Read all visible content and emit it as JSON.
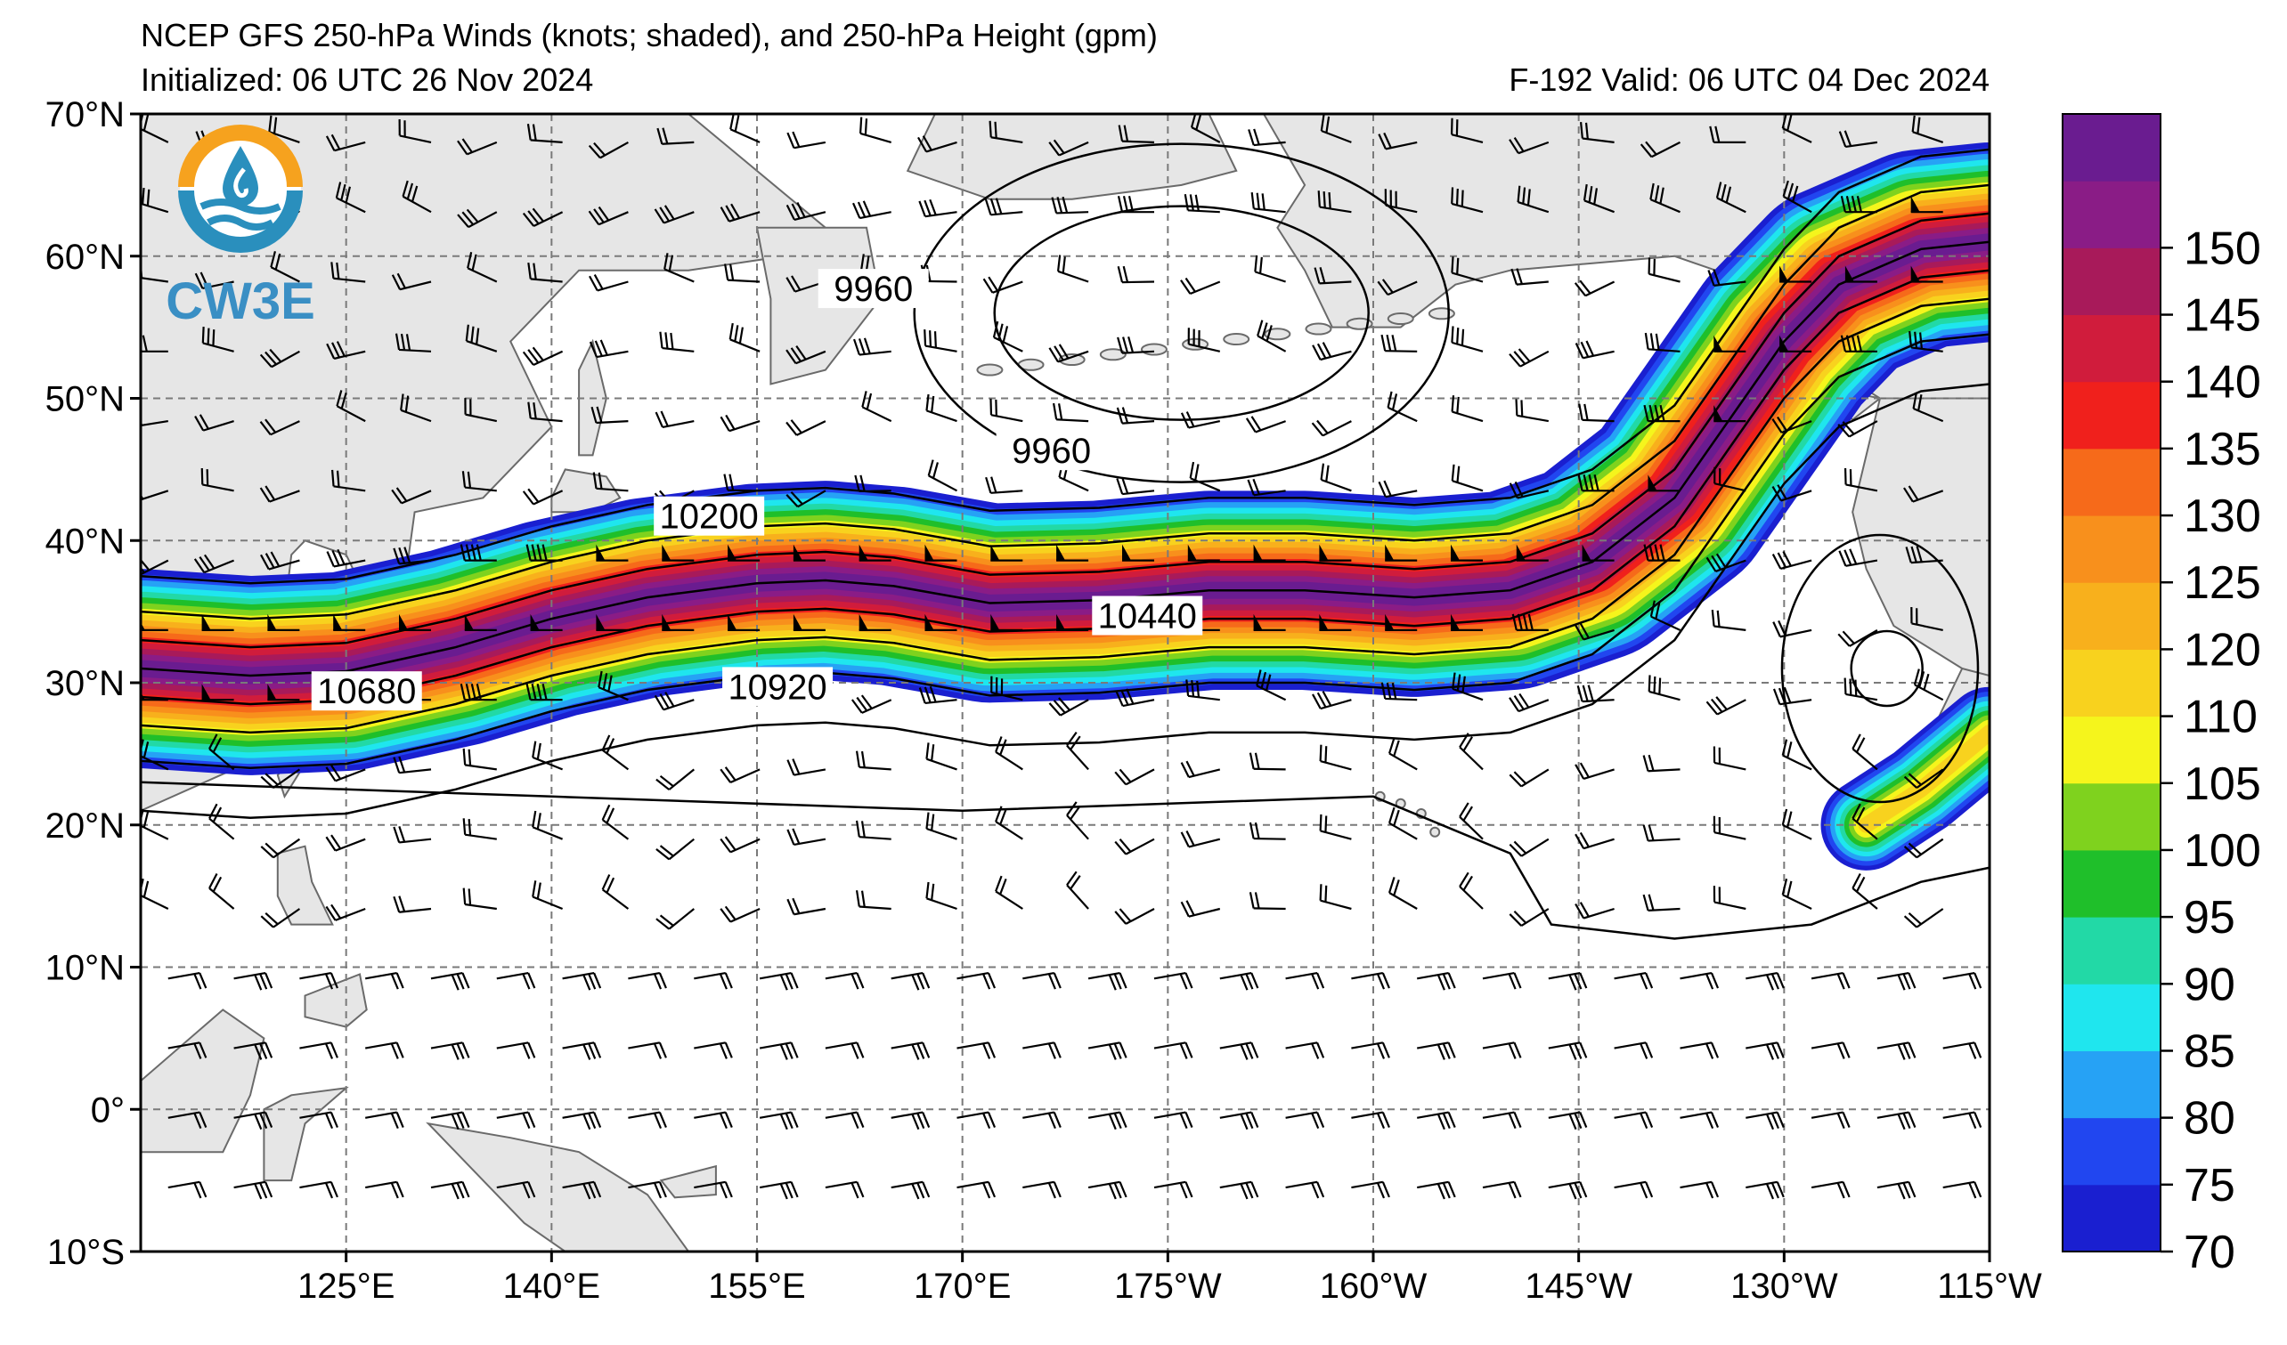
{
  "header": {
    "title": "NCEP GFS 250-hPa Winds (knots; shaded), and 250-hPa Height (gpm)",
    "initialized": "Initialized: 06 UTC 26 Nov 2024",
    "valid": "F-192  Valid: 06 UTC 04 Dec 2024"
  },
  "logo": {
    "text": "CW3E",
    "colors": {
      "ring": "#f6a21e",
      "water": "#2a8fbd",
      "text": "#3a8fc4"
    }
  },
  "map": {
    "lat_range": [
      -10,
      70
    ],
    "lon_range": [
      110,
      245
    ],
    "lat_ticks": [
      {
        "lat": 70,
        "label": "70°N"
      },
      {
        "lat": 60,
        "label": "60°N"
      },
      {
        "lat": 50,
        "label": "50°N"
      },
      {
        "lat": 40,
        "label": "40°N"
      },
      {
        "lat": 30,
        "label": "30°N"
      },
      {
        "lat": 20,
        "label": "20°N"
      },
      {
        "lat": 10,
        "label": "10°N"
      },
      {
        "lat": 0,
        "label": "0°"
      },
      {
        "lat": -10,
        "label": "10°S"
      }
    ],
    "lon_ticks": [
      {
        "lon": 125,
        "label": "125°E"
      },
      {
        "lon": 140,
        "label": "140°E"
      },
      {
        "lon": 155,
        "label": "155°E"
      },
      {
        "lon": 170,
        "label": "170°E"
      },
      {
        "lon": 185,
        "label": "175°W"
      },
      {
        "lon": 200,
        "label": "160°W"
      },
      {
        "lon": 215,
        "label": "145°W"
      },
      {
        "lon": 230,
        "label": "130°W"
      },
      {
        "lon": 245,
        "label": "115°W"
      }
    ],
    "land_color": "#e6e6e6",
    "coast_color": "#6a6a6a",
    "height_contour_labels": [
      {
        "text": "9960",
        "lon": 163.5,
        "lat": 57.6
      },
      {
        "text": "9960",
        "lon": 176.5,
        "lat": 46.2
      },
      {
        "text": "10200",
        "lon": 151.5,
        "lat": 41.6
      },
      {
        "text": "10440",
        "lon": 183.5,
        "lat": 34.6
      },
      {
        "text": "10680",
        "lon": 126.5,
        "lat": 29.3
      },
      {
        "text": "10920",
        "lon": 156.5,
        "lat": 29.6
      }
    ]
  },
  "colorbar": {
    "ticks": [
      "70",
      "75",
      "80",
      "85",
      "90",
      "95",
      "100",
      "105",
      "110",
      "120",
      "125",
      "130",
      "135",
      "140",
      "145",
      "150"
    ],
    "colors": [
      "#1a1fd0",
      "#2146f0",
      "#26a2f5",
      "#1fe6ee",
      "#22d9a6",
      "#1fbf2a",
      "#7fd21e",
      "#f5f51c",
      "#f8d21e",
      "#f8b01c",
      "#f8901c",
      "#f66a1a",
      "#f0201c",
      "#d01c3c",
      "#a81a5a",
      "#8a1c86",
      "#6a1c90"
    ]
  },
  "jet_stream": {
    "axis": [
      [
        110,
        31
      ],
      [
        118,
        30.5
      ],
      [
        125,
        30.8
      ],
      [
        133,
        32.5
      ],
      [
        140,
        34.5
      ],
      [
        147,
        36
      ],
      [
        155,
        37
      ],
      [
        160,
        37.2
      ],
      [
        165,
        36.8
      ],
      [
        172,
        35.6
      ],
      [
        180,
        35.8
      ],
      [
        188,
        36.5
      ],
      [
        195,
        36.5
      ],
      [
        203,
        36
      ],
      [
        210,
        36.5
      ],
      [
        216,
        38.5
      ],
      [
        222,
        43
      ],
      [
        226,
        48.5
      ],
      [
        230,
        54
      ],
      [
        234,
        58
      ],
      [
        240,
        60.5
      ],
      [
        245,
        61
      ]
    ],
    "secondary_axis": [
      [
        236,
        20
      ],
      [
        240,
        22.5
      ],
      [
        245,
        26.5
      ]
    ]
  }
}
